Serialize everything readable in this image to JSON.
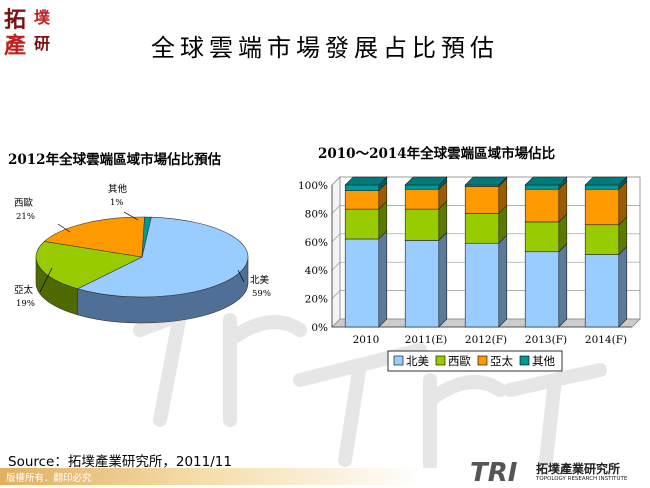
{
  "header": {
    "logo_chars": [
      "拓",
      "墣",
      "產",
      "研"
    ],
    "title": "全球雲端市場發展占比預估"
  },
  "chart_data": [
    {
      "type": "pie",
      "title": "2012年全球雲端區域市場佔比預估",
      "categories": [
        "北美",
        "西歐",
        "亞太",
        "其他"
      ],
      "values": [
        59,
        21,
        19,
        1
      ],
      "value_labels": [
        "59%",
        "21%",
        "19%",
        "1%"
      ],
      "colors": [
        "#99ccff",
        "#99cc00",
        "#ff9900",
        "#009999"
      ],
      "dark_colors": [
        "#4f6f96",
        "#4f6a00",
        "#a85f00",
        "#004f4f"
      ]
    },
    {
      "type": "bar",
      "stacked": true,
      "percent": true,
      "title": "2010～2014年全球雲端區域市場佔比",
      "categories": [
        "2010",
        "2011(E)",
        "2012(F)",
        "2013(F)",
        "2014(F)"
      ],
      "series": [
        {
          "name": "北美",
          "color": "#99ccff",
          "values": [
            62,
            61,
            59,
            53,
            51
          ]
        },
        {
          "name": "西歐",
          "color": "#99cc00",
          "values": [
            21,
            22,
            21,
            21,
            21
          ]
        },
        {
          "name": "亞太",
          "color": "#ff9900",
          "values": [
            13,
            14,
            19,
            23,
            25
          ]
        },
        {
          "name": "其他",
          "color": "#009999",
          "values": [
            4,
            3,
            1,
            3,
            3
          ]
        }
      ],
      "yticks": [
        "0%",
        "20%",
        "40%",
        "60%",
        "80%",
        "100%"
      ],
      "ylim": [
        0,
        100
      ],
      "legend_position": "bottom"
    }
  ],
  "source": "Source：拓墣產業研究所，2011/11",
  "footer": {
    "copyright": "版權所有．翻印必究",
    "logo_mark": "TRI",
    "logo_name": "拓墣產業研究所",
    "logo_en": "TOPOLOGY RESEARCH INSTITUTE"
  }
}
